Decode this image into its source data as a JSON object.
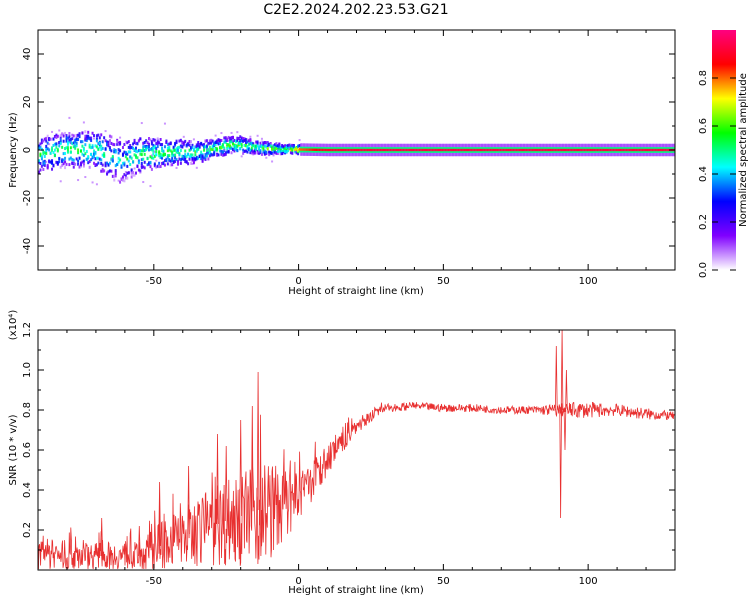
{
  "figure": {
    "title": "C2E2.2024.202.23.53.G21"
  },
  "chart_data": [
    {
      "type": "heatmap",
      "name": "spectrogram",
      "xlabel": "Height of straight line (km)",
      "ylabel": "Frequency (Hz)",
      "xlim": [
        -90,
        130
      ],
      "ylim": [
        -50,
        50
      ],
      "xticks": [
        -50,
        0,
        50,
        100
      ],
      "yticks": [
        -40,
        -20,
        0,
        20,
        40
      ],
      "colorbar": {
        "label": "Normalized spectral amplitude",
        "range": [
          0,
          1
        ],
        "ticks": [
          0.0,
          0.2,
          0.4,
          0.6,
          0.8
        ],
        "colors": [
          "#ffffff",
          "#8000ff",
          "#0000ff",
          "#00ffff",
          "#00ff00",
          "#ffff00",
          "#ff0000",
          "#ff0080"
        ]
      },
      "ridge": {
        "x": [
          -90,
          -80,
          -70,
          -62,
          -55,
          -45,
          -35,
          -28,
          -24,
          -20,
          -15,
          -10,
          -5,
          0,
          10,
          30,
          50,
          80,
          100,
          130
        ],
        "freq": [
          -2,
          0,
          0,
          -5,
          -2,
          -1,
          -1,
          1,
          2,
          2,
          1,
          0.5,
          0.3,
          0.2,
          0,
          0,
          0,
          0,
          0,
          0
        ],
        "amplitude": [
          0.5,
          0.55,
          0.5,
          0.45,
          0.55,
          0.55,
          0.55,
          0.55,
          0.6,
          0.55,
          0.55,
          0.6,
          0.65,
          0.8,
          0.9,
          0.92,
          0.92,
          0.92,
          0.92,
          0.92
        ],
        "spread": [
          8,
          8,
          9,
          10,
          8,
          6,
          5,
          4,
          4,
          4,
          3,
          3,
          2,
          2,
          2,
          2,
          2,
          2,
          2,
          2
        ]
      }
    },
    {
      "type": "line",
      "name": "snr",
      "xlabel": "Height of straight line (km)",
      "ylabel": "SNR (10 * v/v)",
      "y_multiplier": "(x10⁴)",
      "xlim": [
        -90,
        130
      ],
      "ylim": [
        0,
        1.2
      ],
      "xticks": [
        -50,
        0,
        50,
        100
      ],
      "yticks": [
        0.2,
        0.4,
        0.6,
        0.8,
        1.0,
        1.2
      ],
      "color": "#e83030",
      "envelope": {
        "x": [
          -90,
          -70,
          -55,
          -48,
          -40,
          -30,
          -20,
          -15,
          -10,
          -5,
          0,
          5,
          10,
          15,
          20,
          25,
          30,
          40,
          50,
          60,
          70,
          80,
          88,
          95,
          100,
          110,
          120,
          130
        ],
        "mean": [
          0.08,
          0.07,
          0.07,
          0.12,
          0.17,
          0.22,
          0.27,
          0.3,
          0.3,
          0.32,
          0.36,
          0.45,
          0.55,
          0.64,
          0.72,
          0.77,
          0.81,
          0.82,
          0.81,
          0.81,
          0.8,
          0.8,
          0.8,
          0.8,
          0.8,
          0.8,
          0.78,
          0.77
        ],
        "noise": [
          0.08,
          0.07,
          0.07,
          0.12,
          0.15,
          0.2,
          0.25,
          0.3,
          0.25,
          0.18,
          0.12,
          0.1,
          0.08,
          0.06,
          0.04,
          0.03,
          0.02,
          0.02,
          0.02,
          0.02,
          0.02,
          0.02,
          0.03,
          0.04,
          0.04,
          0.03,
          0.03,
          0.02
        ]
      },
      "spikes": [
        {
          "x": -68,
          "y": 0.26
        },
        {
          "x": -55,
          "y": 0.22
        },
        {
          "x": -48,
          "y": 0.44
        },
        {
          "x": -38,
          "y": 0.52
        },
        {
          "x": -28,
          "y": 0.68
        },
        {
          "x": -25,
          "y": 0.62
        },
        {
          "x": -20,
          "y": 0.75
        },
        {
          "x": -16,
          "y": 0.82
        },
        {
          "x": -14,
          "y": 0.99
        },
        {
          "x": -13,
          "y": 0.07
        },
        {
          "x": 89,
          "y": 1.12
        },
        {
          "x": 90.5,
          "y": 0.26
        },
        {
          "x": 91,
          "y": 1.2
        },
        {
          "x": 92,
          "y": 0.6
        },
        {
          "x": 92.5,
          "y": 1.0
        }
      ]
    }
  ]
}
